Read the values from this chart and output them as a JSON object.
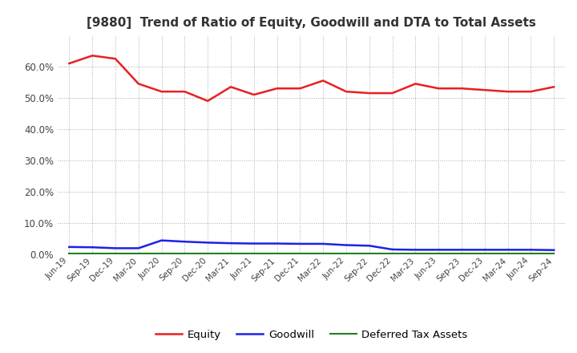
{
  "title": "[9880]  Trend of Ratio of Equity, Goodwill and DTA to Total Assets",
  "x_labels": [
    "Jun-19",
    "Sep-19",
    "Dec-19",
    "Mar-20",
    "Jun-20",
    "Sep-20",
    "Dec-20",
    "Mar-21",
    "Jun-21",
    "Sep-21",
    "Dec-21",
    "Mar-22",
    "Jun-22",
    "Sep-22",
    "Dec-22",
    "Mar-23",
    "Jun-23",
    "Sep-23",
    "Dec-23",
    "Mar-24",
    "Jun-24",
    "Sep-24"
  ],
  "equity": [
    0.61,
    0.635,
    0.625,
    0.545,
    0.52,
    0.52,
    0.49,
    0.535,
    0.51,
    0.53,
    0.53,
    0.555,
    0.52,
    0.515,
    0.515,
    0.545,
    0.53,
    0.53,
    0.525,
    0.52,
    0.52,
    0.535
  ],
  "goodwill": [
    0.023,
    0.022,
    0.019,
    0.019,
    0.044,
    0.04,
    0.037,
    0.035,
    0.034,
    0.034,
    0.033,
    0.033,
    0.029,
    0.027,
    0.015,
    0.014,
    0.014,
    0.014,
    0.014,
    0.014,
    0.014,
    0.013
  ],
  "dta": [
    0.003,
    0.003,
    0.003,
    0.003,
    0.003,
    0.003,
    0.003,
    0.003,
    0.003,
    0.003,
    0.003,
    0.003,
    0.003,
    0.003,
    0.003,
    0.003,
    0.003,
    0.003,
    0.003,
    0.003,
    0.003,
    0.003
  ],
  "equity_color": "#e82020",
  "goodwill_color": "#2020e8",
  "dta_color": "#208020",
  "background_color": "#ffffff",
  "plot_bg_color": "#ffffff",
  "grid_color": "#aaaaaa",
  "ylim": [
    0.0,
    0.7
  ],
  "yticks": [
    0.0,
    0.1,
    0.2,
    0.3,
    0.4,
    0.5,
    0.6
  ],
  "legend_labels": [
    "Equity",
    "Goodwill",
    "Deferred Tax Assets"
  ]
}
